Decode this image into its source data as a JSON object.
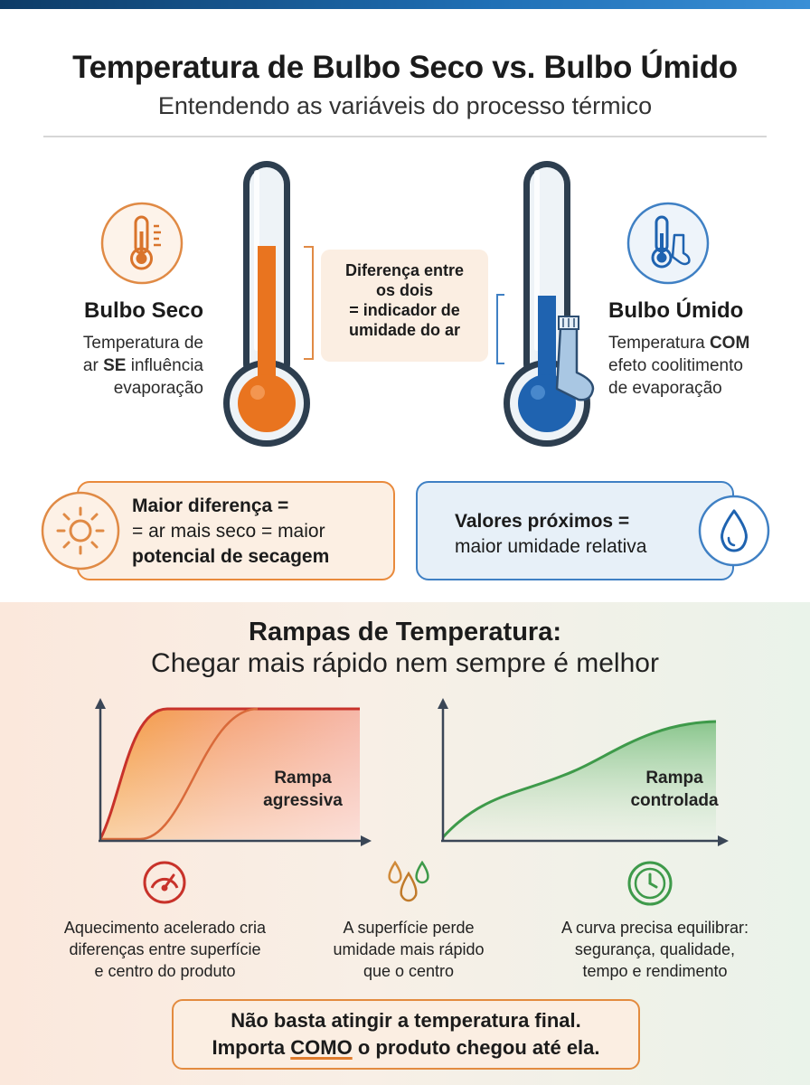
{
  "header": {
    "title": "Temperatura de Bulbo Seco vs. Bulbo Úmido",
    "subtitle": "Entendendo as variáveis do processo térmico"
  },
  "dry_bulb": {
    "title": "Bulbo Seco",
    "line1": "Temperatura de",
    "line2_pre": "ar ",
    "line2_strong": "SE",
    "line2_post": " influência",
    "line3": "evaporação",
    "color": "#e9741f",
    "icon": "thermometer-icon"
  },
  "wet_bulb": {
    "title": "Bulbo Úmido",
    "line1_pre": "Temperatura ",
    "line1_strong": "COM",
    "line2": "efeto coolitimento",
    "line3": "de evaporação",
    "color": "#1f63b0",
    "icon": "thermometer-sock-icon"
  },
  "center_note": {
    "line1": "Diferença entre",
    "line2": "os dois",
    "line3": "= indicador de",
    "line4": "umidade do ar"
  },
  "box_dry": {
    "strong1": "Maior diferença =",
    "line2": "= ar mais seco = maior",
    "strong3": "potencial de secagem",
    "icon": "sun-icon"
  },
  "box_humid": {
    "strong1": "Valores próximos =",
    "line2": "maior umidade relativa",
    "icon": "water-drop-icon"
  },
  "ramps": {
    "title": "Rampas de Temperatura:",
    "subtitle": "Chegar mais rápido nem sempre é melhor",
    "aggressive_l1": "Rampa",
    "aggressive_l2": "agressiva",
    "controlled_l1": "Rampa",
    "controlled_l2": "controlada"
  },
  "captions": {
    "c1_l1": "Aquecimento acelerado cria",
    "c1_l2": "diferenças entre superfície",
    "c1_l3": "e centro do produto",
    "c2_l1": "A superfície perde",
    "c2_l2": "umidade mais rápido",
    "c2_l3": "que o centro",
    "c3_l1": "A curva precisa equilibrar:",
    "c3_l2": "segurança, qualidade,",
    "c3_l3": "tempo e rendimento"
  },
  "footer": {
    "line1": "Não basta atingir a temperatura final.",
    "line2_pre": "Importa ",
    "line2_u": "COMO",
    "line2_post": " o produto chegou até ela."
  },
  "colors": {
    "orange": "#e9741f",
    "blue": "#1f63b0",
    "green": "#3e9a4a",
    "red": "#c8322a"
  }
}
